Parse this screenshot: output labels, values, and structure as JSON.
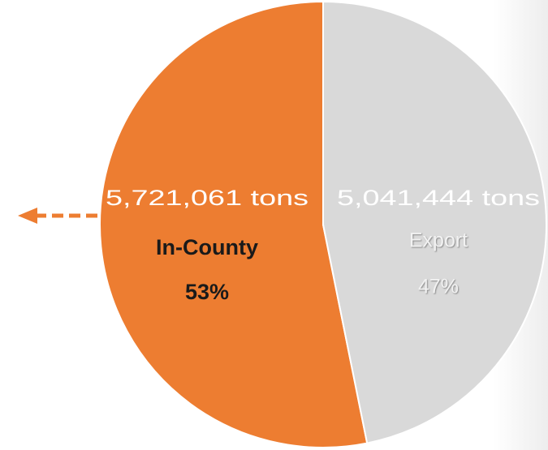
{
  "chart_data": {
    "type": "pie",
    "categories": [
      "In-County",
      "Export"
    ],
    "values": [
      5721061,
      5041444
    ],
    "value_labels": [
      "5,721,061 tons",
      "5,041,444 tons"
    ],
    "percentages": [
      53,
      47
    ],
    "percentage_labels": [
      "53%",
      "47%"
    ],
    "colors": [
      "#ed7d31",
      "#d9d9d9"
    ]
  }
}
